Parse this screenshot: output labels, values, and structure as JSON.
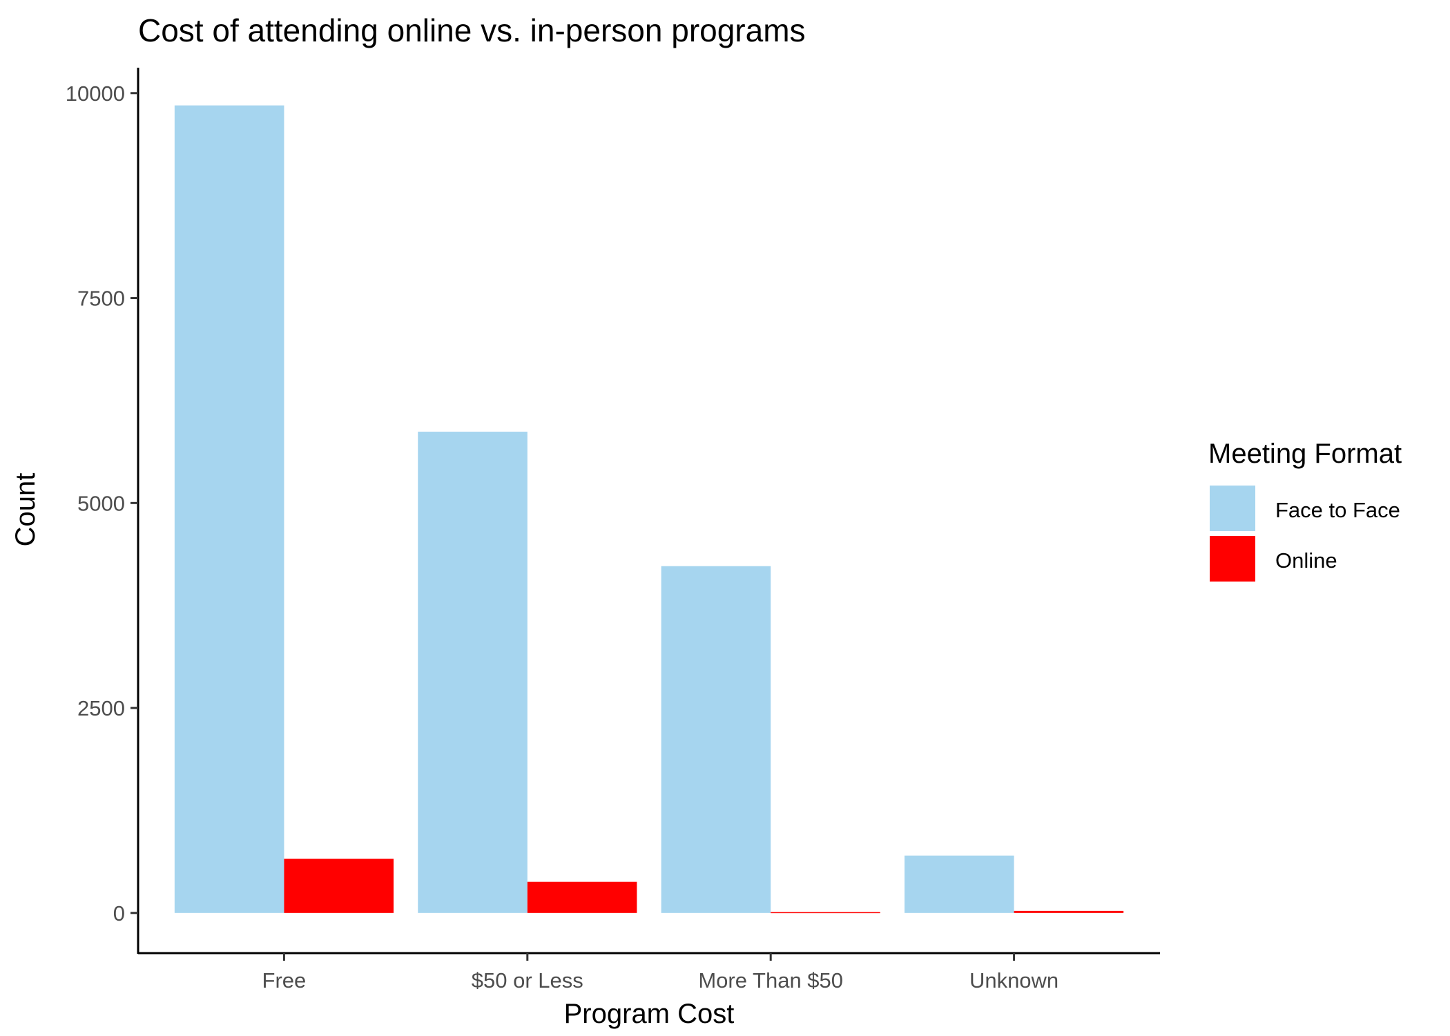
{
  "chart_data": {
    "type": "bar",
    "title": "Cost of attending online vs. in-person programs",
    "xlabel": "Program Cost",
    "ylabel": "Count",
    "categories": [
      "Free",
      "$50 or Less",
      "More Than $50",
      "Unknown"
    ],
    "series": [
      {
        "name": "Face to Face",
        "color": "#a6d5ef",
        "values": [
          9850,
          5870,
          4230,
          700
        ]
      },
      {
        "name": "Online",
        "color": "#ff0000",
        "values": [
          660,
          380,
          10,
          25
        ]
      }
    ],
    "yticks": [
      0,
      2500,
      5000,
      7500,
      10000
    ],
    "ylim": [
      -490,
      10310
    ],
    "grid": false,
    "legend": {
      "title": "Meeting Format",
      "position": "right"
    }
  }
}
